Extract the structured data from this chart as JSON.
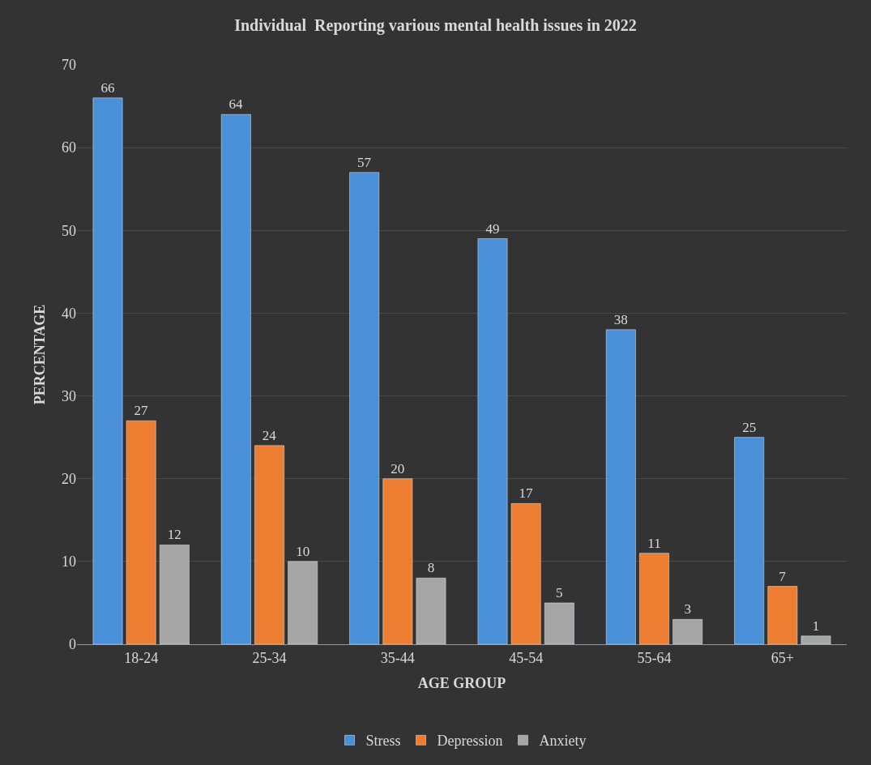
{
  "chart_data": {
    "type": "bar",
    "title": "Individual  Reporting various mental health issues in 2022",
    "xlabel": "AGE GROUP",
    "ylabel": "PERCENTAGE",
    "categories": [
      "18-24",
      "25-34",
      "35-44",
      "45-54",
      "55-64",
      "65+"
    ],
    "series": [
      {
        "name": "Stress",
        "color": "#4a90d9",
        "values": [
          66,
          64,
          57,
          49,
          38,
          25
        ]
      },
      {
        "name": "Depression",
        "color": "#ed7d31",
        "values": [
          27,
          24,
          20,
          17,
          11,
          7
        ]
      },
      {
        "name": "Anxiety",
        "color": "#a5a5a5",
        "values": [
          12,
          10,
          8,
          5,
          3,
          1
        ]
      }
    ],
    "ylim": [
      0,
      70
    ],
    "yticks": [
      0,
      10,
      20,
      30,
      40,
      50,
      60,
      70
    ],
    "grid": "y",
    "legend": "bottom",
    "data_labels": true
  }
}
